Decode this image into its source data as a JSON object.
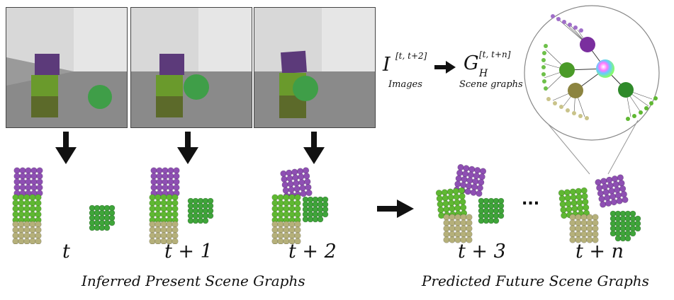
{
  "panels": [
    {
      "label": "Image frame t",
      "block_offset": 0,
      "sphere": "right"
    },
    {
      "label": "Image frame t+1",
      "block_offset": 0,
      "sphere": "mid"
    },
    {
      "label": "Image frame t+2",
      "block_offset": 0,
      "sphere": "near"
    }
  ],
  "time_steps": {
    "t0": "t",
    "t1": "t + 1",
    "t2": "t + 2",
    "t3": "t + 3",
    "tn": "t + n"
  },
  "captions": {
    "present": "Inferred Present Scene Graphs",
    "future": "Predicted Future Scene Graphs"
  },
  "equation": {
    "images_symbol": "I",
    "images_superscript": "[t, t+2]",
    "images_label": "Images",
    "graphs_symbol": "G",
    "graphs_subscript": "H",
    "graphs_superscript": "[t, t+n]",
    "graphs_label": "Scene graphs"
  },
  "ellipsis": "...",
  "colors": {
    "purple": "#8e4fb3",
    "green": "#5fb832",
    "tan": "#b5b07a",
    "ball": "#3fa53a",
    "arrow": "#111111"
  },
  "icons": [
    "down-arrow-icon",
    "right-arrow-icon",
    "magnifier-circle-icon"
  ]
}
